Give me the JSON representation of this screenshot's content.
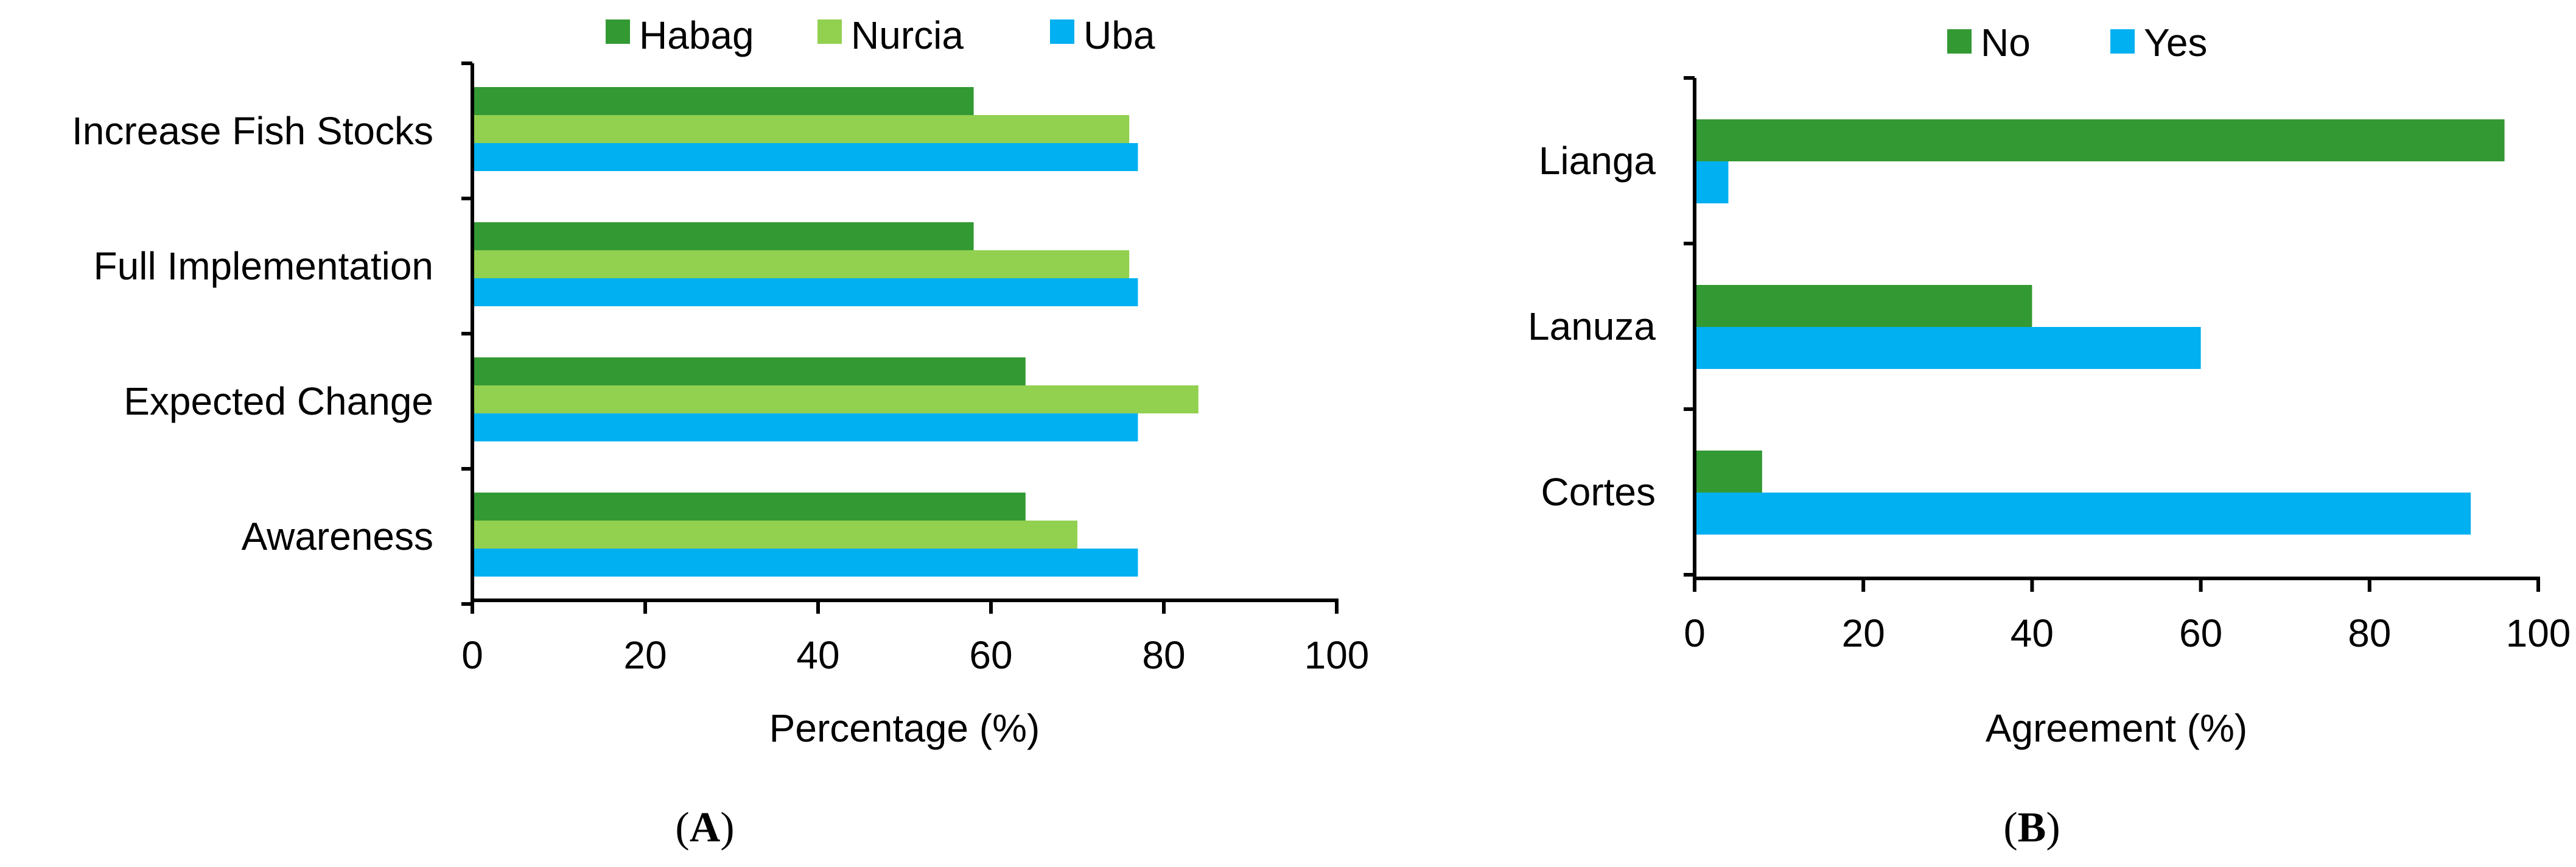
{
  "colors": {
    "Habag": "#339933",
    "Nurcia": "#92d050",
    "Uba": "#00b0f0",
    "No": "#339933",
    "Yes": "#00b0f0"
  },
  "chart_data": [
    {
      "type": "bar",
      "orientation": "horizontal",
      "panel": "A",
      "categories": [
        "Increase Fish Stocks",
        "Full Implementation",
        "Expected Change",
        "Awareness"
      ],
      "series": [
        {
          "name": "Habag",
          "values": [
            58,
            58,
            64,
            64
          ]
        },
        {
          "name": "Nurcia",
          "values": [
            76,
            76,
            84,
            70
          ]
        },
        {
          "name": "Uba",
          "values": [
            77,
            77,
            77,
            77
          ]
        }
      ],
      "xlabel": "Percentage (%)",
      "xlim": [
        0,
        100
      ],
      "xticks": [
        "0",
        "20",
        "40",
        "60",
        "80",
        "100"
      ],
      "legend": "top"
    },
    {
      "type": "bar",
      "orientation": "horizontal",
      "panel": "B",
      "categories": [
        "Lianga",
        "Lanuza",
        "Cortes"
      ],
      "series": [
        {
          "name": "No",
          "values": [
            96,
            40,
            8
          ]
        },
        {
          "name": "Yes",
          "values": [
            4,
            60,
            92
          ]
        }
      ],
      "xlabel": "Agreement (%)",
      "xlim": [
        0,
        100
      ],
      "xticks": [
        "0",
        "20",
        "40",
        "60",
        "80",
        "100"
      ],
      "legend": "top"
    }
  ],
  "captions": {
    "a_open": "(",
    "a_letter": "A",
    "a_close": ")",
    "b_open": "(",
    "b_letter": "B",
    "b_close": ")"
  }
}
